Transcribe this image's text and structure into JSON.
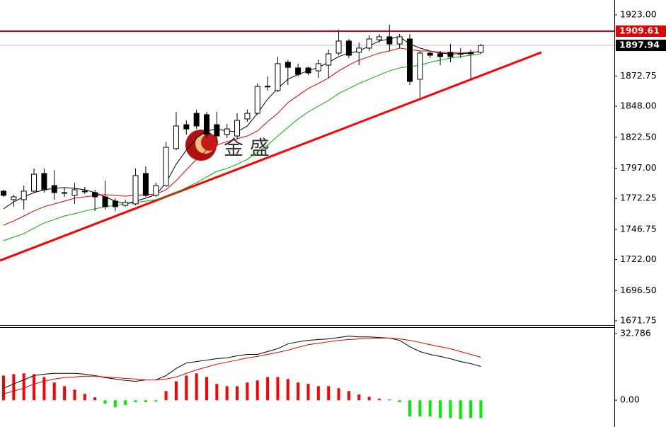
{
  "chart_data": [
    {
      "type": "candlestick",
      "open": [
        1778.2,
        1771.2,
        1771.2,
        1778.2,
        1792.7,
        1782.8,
        1777.0,
        1774.7,
        1778.2,
        1777.0,
        1773.5,
        1770.0,
        1766.5,
        1767.7,
        1792.7,
        1774.7,
        1782.8,
        1813.1,
        1832.8,
        1842.1,
        1841.0,
        1832.8,
        1824.7,
        1823.5,
        1837.5,
        1842.1,
        1864.2,
        1860.8,
        1884.0,
        1879.4,
        1879.4,
        1877.0,
        1881.7,
        1891.6,
        1901.5,
        1892.2,
        1895.7,
        1902.6,
        1905.0,
        1899.1,
        1903.2,
        1870.1,
        1891.6,
        1891.0,
        1892.2,
        1891.0,
        1892.2,
        1892.2
      ],
      "high": [
        1779.3,
        1775.3,
        1782.8,
        1796.8,
        1796.8,
        1795.6,
        1781.1,
        1785.1,
        1781.7,
        1779.3,
        1786.9,
        1772.4,
        1771.2,
        1796.8,
        1798.5,
        1785.1,
        1818.9,
        1843.3,
        1836.3,
        1845.1,
        1843.3,
        1843.3,
        1833.4,
        1842.1,
        1845.1,
        1866.6,
        1872.4,
        1888.7,
        1885.8,
        1882.9,
        1880.5,
        1886.3,
        1894.5,
        1910.8,
        1903.2,
        1900.3,
        1906.1,
        1907.3,
        1914.8,
        1907.3,
        1907.3,
        1893.3,
        1893.3,
        1893.3,
        1899.1,
        1895.7,
        1894.5,
        1899.1
      ],
      "low": [
        1773.5,
        1765.4,
        1763.0,
        1777.0,
        1777.0,
        1771.2,
        1773.5,
        1767.7,
        1775.8,
        1761.9,
        1763.0,
        1761.9,
        1765.4,
        1766.5,
        1773.5,
        1773.5,
        1781.7,
        1811.9,
        1824.7,
        1829.3,
        1821.8,
        1818.9,
        1821.8,
        1821.2,
        1835.2,
        1841.0,
        1860.8,
        1859.6,
        1865.4,
        1872.4,
        1873.6,
        1871.2,
        1871.2,
        1889.8,
        1887.5,
        1881.7,
        1893.3,
        1900.3,
        1893.3,
        1895.7,
        1865.4,
        1854.9,
        1887.5,
        1881.7,
        1884.0,
        1887.5,
        1870.1,
        1891.0
      ],
      "close": [
        1774.7,
        1773.5,
        1778.2,
        1792.1,
        1779.3,
        1777.0,
        1776.8,
        1779.3,
        1777.6,
        1773.5,
        1765.4,
        1765.4,
        1768.9,
        1791.0,
        1774.7,
        1782.8,
        1814.2,
        1831.7,
        1829.3,
        1831.7,
        1824.7,
        1823.5,
        1829.3,
        1836.3,
        1842.1,
        1864.2,
        1864.4,
        1882.9,
        1879.9,
        1874.1,
        1875.3,
        1882.9,
        1891.0,
        1901.5,
        1889.8,
        1895.7,
        1903.2,
        1905.0,
        1899.1,
        1905.0,
        1868.3,
        1891.6,
        1889.8,
        1888.7,
        1888.7,
        1891.2,
        1891.0,
        1897.9
      ],
      "up_color": "#ffffff",
      "down_color": "#000000",
      "edge_color": "#000000",
      "series": [
        {
          "color": "#000000",
          "values": [
            1763.6,
            1769.4,
            1773.5,
            1777.0,
            1779.3,
            1780.5,
            1781.1,
            1780.5,
            1779.3,
            1777.0,
            1773.5,
            1770.0,
            1767.7,
            1770.0,
            1772.4,
            1775.3,
            1785.1,
            1800.3,
            1811.9,
            1821.8,
            1827.6,
            1829.3,
            1827.6,
            1827.0,
            1831.7,
            1842.1,
            1853.8,
            1862.5,
            1870.1,
            1874.1,
            1877.0,
            1879.9,
            1884.0,
            1888.7,
            1891.6,
            1893.3,
            1897.4,
            1901.5,
            1903.2,
            1905.0,
            1899.1,
            1895.7,
            1893.3,
            1891.6,
            1891.0,
            1891.0,
            1891.6,
            1893.3
          ]
        },
        {
          "color": "#e00000",
          "values": [
            1750.3,
            1753.7,
            1757.8,
            1761.9,
            1765.4,
            1767.7,
            1770.0,
            1772.4,
            1773.5,
            1774.7,
            1775.3,
            1774.7,
            1774.1,
            1774.7,
            1775.3,
            1775.8,
            1779.3,
            1786.9,
            1795.6,
            1804.3,
            1811.9,
            1816.0,
            1818.9,
            1821.2,
            1823.5,
            1827.6,
            1835.2,
            1842.1,
            1850.9,
            1856.7,
            1862.5,
            1866.6,
            1871.2,
            1877.0,
            1881.7,
            1885.8,
            1888.7,
            1891.6,
            1893.3,
            1895.7,
            1894.5,
            1893.3,
            1893.3,
            1892.2,
            1892.2,
            1891.6,
            1892.2,
            1892.7
          ]
        },
        {
          "color": "#00b000",
          "values": [
            1737.5,
            1740.4,
            1743.3,
            1747.9,
            1752.0,
            1754.9,
            1757.8,
            1759.6,
            1761.9,
            1763.6,
            1765.4,
            1766.5,
            1767.7,
            1768.9,
            1770.0,
            1771.2,
            1773.5,
            1777.0,
            1781.1,
            1785.1,
            1789.8,
            1794.5,
            1796.8,
            1800.3,
            1804.3,
            1810.2,
            1816.0,
            1823.5,
            1830.5,
            1837.5,
            1843.3,
            1848.0,
            1852.6,
            1858.4,
            1862.5,
            1866.6,
            1870.1,
            1873.6,
            1877.0,
            1879.4,
            1880.5,
            1881.7,
            1884.0,
            1885.8,
            1887.5,
            1888.7,
            1889.8,
            1891.0
          ]
        }
      ],
      "trendline": {
        "values": [
          1721.2,
          1892.2
        ],
        "color": "#ff0000"
      },
      "price_lines": [
        {
          "value": 1909.61,
          "color": "#e00000",
          "label_bg": "#e00000"
        },
        {
          "value": 1897.94,
          "color": "#c0c0c0",
          "label_bg": "#000000"
        }
      ],
      "watermark": "金 盛",
      "ylim": [
        1668.8,
        1935.2
      ],
      "yticks": [
        {
          "value": 1923,
          "label": "1923.00"
        },
        {
          "value": 1872.75,
          "label": "1872.75"
        },
        {
          "value": 1848,
          "label": "1848.00"
        },
        {
          "value": 1822.5,
          "label": "1822.50"
        },
        {
          "value": 1797,
          "label": "1797.00"
        },
        {
          "value": 1772.25,
          "label": "1772.25"
        },
        {
          "value": 1746.75,
          "label": "1746.75"
        },
        {
          "value": 1722,
          "label": "1722.00"
        },
        {
          "value": 1696.5,
          "label": "1696.50"
        },
        {
          "value": 1671.75,
          "label": "1671.75"
        }
      ]
    },
    {
      "type": "macd",
      "values": [
        12.1,
        12.8,
        13.2,
        12.8,
        11.4,
        8.7,
        6.9,
        5.2,
        3.1,
        1.4,
        -1.7,
        -3.5,
        -2.4,
        -1.0,
        -1.0,
        -0.7,
        4.5,
        9.3,
        12.1,
        13.2,
        11.4,
        8.0,
        6.9,
        6.9,
        8.7,
        9.7,
        11.4,
        11.4,
        10.4,
        8.7,
        8.0,
        6.9,
        6.9,
        5.9,
        4.5,
        2.8,
        1.7,
        0.7,
        0.3,
        -1.0,
        -8.0,
        -8.0,
        -8.0,
        -8.7,
        -8.7,
        -9.3,
        -8.7,
        -8.7
      ],
      "pos_color": "#ff0000",
      "neg_color": "#00ee00",
      "series": [
        {
          "color": "#000000",
          "values": [
            5.9,
            8.0,
            10.0,
            12.1,
            12.8,
            13.2,
            13.2,
            13.2,
            12.8,
            12.1,
            11.1,
            10.4,
            9.7,
            9.3,
            10.0,
            10.0,
            12.1,
            15.6,
            18.3,
            19.0,
            19.7,
            20.4,
            20.8,
            21.8,
            22.5,
            22.5,
            23.9,
            25.3,
            27.7,
            28.7,
            29.4,
            29.8,
            30.1,
            30.8,
            31.5,
            31.1,
            31.1,
            30.8,
            30.5,
            29.4,
            26.3,
            23.9,
            22.5,
            21.5,
            20.4,
            19.0,
            18.0,
            16.6
          ]
        },
        {
          "color": "#e00000",
          "values": [
            3.1,
            4.5,
            5.9,
            8.0,
            9.3,
            10.4,
            11.1,
            11.4,
            11.8,
            11.8,
            11.4,
            11.1,
            10.7,
            10.4,
            10.0,
            10.0,
            10.4,
            11.4,
            13.2,
            14.9,
            16.3,
            17.7,
            18.7,
            19.7,
            20.8,
            21.5,
            22.5,
            23.5,
            24.6,
            26.0,
            27.3,
            28.0,
            28.7,
            29.4,
            29.8,
            30.1,
            30.5,
            30.5,
            30.5,
            30.1,
            29.4,
            28.4,
            27.3,
            26.3,
            25.3,
            23.9,
            22.5,
            21.1
          ]
        }
      ],
      "ylim": [
        -13.15,
        35.55
      ],
      "yticks": [
        32.786,
        {
          "value": 0,
          "label": "0.00"
        }
      ]
    }
  ]
}
